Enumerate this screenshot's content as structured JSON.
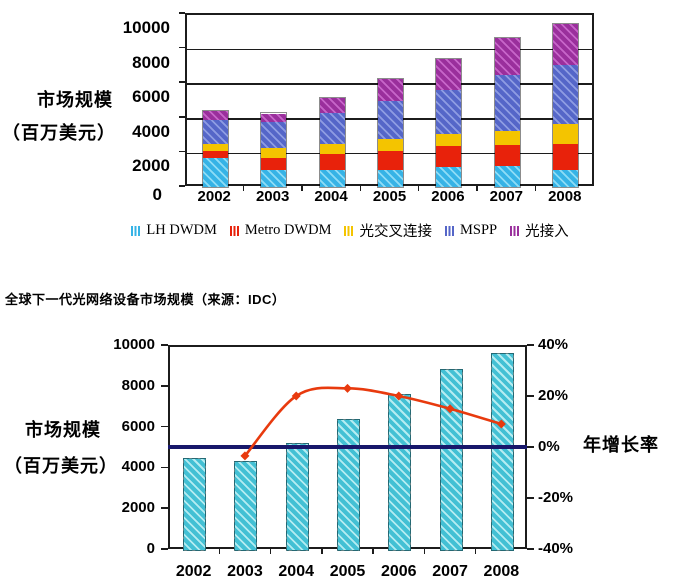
{
  "caption": "全球下一代光网络设备市场规模（来源：IDC）",
  "chart_data": [
    {
      "type": "bar",
      "stacked": true,
      "ylabel_lines": [
        "市场规模",
        "（百万美元）"
      ],
      "categories": [
        "2002",
        "2003",
        "2004",
        "2005",
        "2006",
        "2007",
        "2008"
      ],
      "ylim": [
        0,
        10000
      ],
      "yticks": [
        0,
        2000,
        4000,
        6000,
        8000,
        10000
      ],
      "grid": true,
      "legend_position": "bottom",
      "series": [
        {
          "name": "LH DWDM",
          "color": "#36b3e6",
          "stripe": "#8edcf6",
          "values": [
            1650,
            1000,
            1000,
            1000,
            1150,
            1200,
            1000
          ]
        },
        {
          "name": "Metro DWDM",
          "color": "#e8220b",
          "stripe": null,
          "values": [
            450,
            700,
            900,
            1100,
            1200,
            1250,
            1500
          ]
        },
        {
          "name": "光交叉连接",
          "color": "#f4c400",
          "stripe": null,
          "values": [
            400,
            550,
            600,
            700,
            700,
            800,
            1150
          ]
        },
        {
          "name": "MSPP",
          "color": "#5566c8",
          "stripe": "#8e9ce2",
          "values": [
            1350,
            1500,
            1750,
            2200,
            2550,
            3200,
            3400
          ]
        },
        {
          "name": "光接入",
          "color": "#9a2f9c",
          "stripe": "#c765c9",
          "values": [
            550,
            500,
            900,
            1250,
            1800,
            2150,
            2400
          ]
        }
      ]
    },
    {
      "type": "bar+line",
      "ylabel_lines": [
        "市场规模",
        "（百万美元）"
      ],
      "y2label": "年增长率",
      "categories": [
        "2002",
        "2003",
        "2004",
        "2005",
        "2006",
        "2007",
        "2008"
      ],
      "ylim": [
        0,
        10000
      ],
      "yticks": [
        0,
        2000,
        4000,
        6000,
        8000,
        10000
      ],
      "y2lim": [
        -40,
        40
      ],
      "y2ticks": [
        40,
        20,
        0,
        -20,
        -40
      ],
      "grid": false,
      "bars": {
        "name": "市场规模（百万美元）",
        "color": "#43c0d4",
        "stripe": "#b5ecf1",
        "values": [
          4480,
          4320,
          5220,
          6360,
          7590,
          8810,
          9590
        ]
      },
      "line": {
        "name": "年增长率",
        "color": "#e83a0e",
        "marker": "diamond",
        "values": [
          null,
          -3.5,
          20,
          23,
          20,
          15,
          9
        ]
      },
      "ref_line": {
        "value": 0,
        "color": "#17176b"
      }
    }
  ]
}
